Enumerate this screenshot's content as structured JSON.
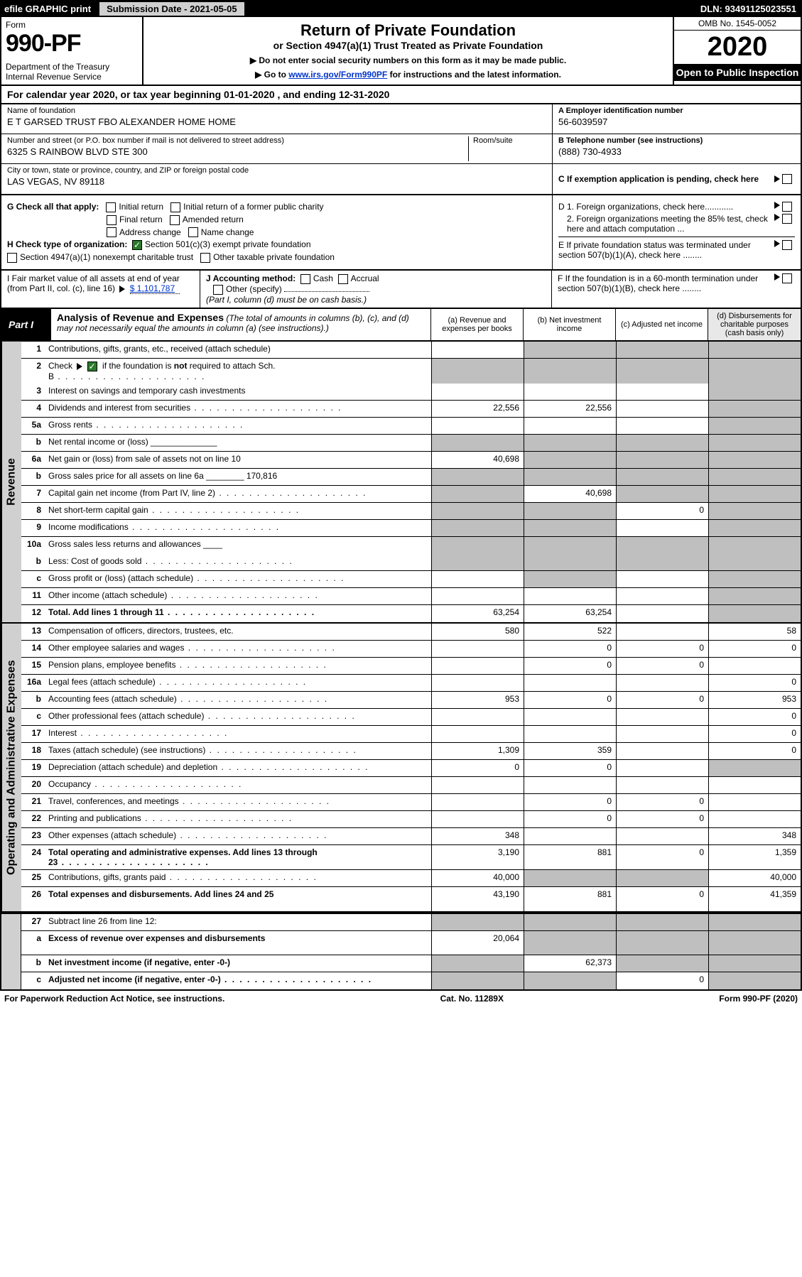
{
  "top": {
    "efile": "efile GRAPHIC print",
    "sub_date": "Submission Date - 2021-05-05",
    "dln": "DLN: 93491125023551"
  },
  "header": {
    "form_label": "Form",
    "form_num": "990-PF",
    "dept": "Department of the Treasury",
    "irs": "Internal Revenue Service",
    "title": "Return of Private Foundation",
    "subtitle": "or Section 4947(a)(1) Trust Treated as Private Foundation",
    "note1": "▶ Do not enter social security numbers on this form as it may be made public.",
    "note2_pre": "▶ Go to ",
    "note2_link": "www.irs.gov/Form990PF",
    "note2_post": " for instructions and the latest information.",
    "omb": "OMB No. 1545-0052",
    "year": "2020",
    "open": "Open to Public Inspection"
  },
  "cal": "For calendar year 2020, or tax year beginning 01-01-2020            , and ending 12-31-2020",
  "entity": {
    "name_lbl": "Name of foundation",
    "name": "E T GARSED TRUST FBO ALEXANDER HOME HOME",
    "addr_lbl": "Number and street (or P.O. box number if mail is not delivered to street address)",
    "room_lbl": "Room/suite",
    "addr": "6325 S RAINBOW BLVD STE 300",
    "city_lbl": "City or town, state or province, country, and ZIP or foreign postal code",
    "city": "LAS VEGAS, NV   89118",
    "ein_lbl": "A Employer identification number",
    "ein": "56-6039597",
    "tel_lbl": "B Telephone number (see instructions)",
    "tel": "(888) 730-4933",
    "pending": "C If exemption application is pending, check here"
  },
  "gh": {
    "g_lbl": "G Check all that apply:",
    "initial": "Initial return",
    "initial_former": "Initial return of a former public charity",
    "final": "Final return",
    "amended": "Amended return",
    "addr_chg": "Address change",
    "name_chg": "Name change",
    "h_lbl": "H Check type of organization:",
    "h501c3": "Section 501(c)(3) exempt private foundation",
    "h4947": "Section 4947(a)(1) nonexempt charitable trust",
    "hother": "Other taxable private foundation",
    "d1": "D 1. Foreign organizations, check here............",
    "d2": "2. Foreign organizations meeting the 85% test, check here and attach computation ...",
    "e": "E  If private foundation status was terminated under section 507(b)(1)(A), check here ........"
  },
  "ijf": {
    "i_lbl": "I Fair market value of all assets at end of year (from Part II, col. (c), line 16)",
    "i_val": "$  1,101,787",
    "j_lbl": "J Accounting method:",
    "cash": "Cash",
    "accrual": "Accrual",
    "other": "Other (specify)",
    "j_note": "(Part I, column (d) must be on cash basis.)",
    "f": "F  If the foundation is in a 60-month termination under section 507(b)(1)(B), check here ........"
  },
  "part1": {
    "badge": "Part I",
    "title_b": "Analysis of Revenue and Expenses",
    "title_rest": " (The total of amounts in columns (b), (c), and (d) may not necessarily equal the amounts in column (a) (see instructions).)",
    "col_a": "(a)   Revenue and expenses per books",
    "col_b": "(b)   Net investment income",
    "col_c": "(c)   Adjusted net income",
    "col_d": "(d)   Disbursements for charitable purposes (cash basis only)"
  },
  "side_rev": "Revenue",
  "side_exp": "Operating and Administrative Expenses",
  "rev_rows": [
    {
      "n": "1",
      "d": "Contributions, gifts, grants, etc., received (attach schedule)",
      "a": "",
      "b": "g",
      "c": "g",
      "dd": "g"
    },
    {
      "n": "2",
      "d": "Check ▶ ☑ if the foundation is not required to attach Sch. B",
      "dots": true,
      "a": "g",
      "b": "g",
      "c": "g",
      "dd": "g",
      "nob": true,
      "checkgreen": true
    },
    {
      "n": "3",
      "d": "Interest on savings and temporary cash investments",
      "a": "",
      "b": "",
      "c": "",
      "dd": "g"
    },
    {
      "n": "4",
      "d": "Dividends and interest from securities",
      "dots": true,
      "a": "22,556",
      "b": "22,556",
      "c": "",
      "dd": "g"
    },
    {
      "n": "5a",
      "d": "Gross rents",
      "dots": true,
      "a": "",
      "b": "",
      "c": "",
      "dd": "g"
    },
    {
      "n": "b",
      "d": "Net rental income or (loss)  ______________",
      "a": "g",
      "b": "g",
      "c": "g",
      "dd": "g"
    },
    {
      "n": "6a",
      "d": "Net gain or (loss) from sale of assets not on line 10",
      "a": "40,698",
      "b": "g",
      "c": "g",
      "dd": "g"
    },
    {
      "n": "b",
      "d": "Gross sales price for all assets on line 6a ________  170,816",
      "a": "g",
      "b": "g",
      "c": "g",
      "dd": "g"
    },
    {
      "n": "7",
      "d": "Capital gain net income (from Part IV, line 2)",
      "dots": true,
      "a": "g",
      "b": "40,698",
      "c": "g",
      "dd": "g"
    },
    {
      "n": "8",
      "d": "Net short-term capital gain",
      "dots": true,
      "a": "g",
      "b": "g",
      "c": "0",
      "dd": "g"
    },
    {
      "n": "9",
      "d": "Income modifications",
      "dots": true,
      "a": "g",
      "b": "g",
      "c": "",
      "dd": "g"
    },
    {
      "n": "10a",
      "d": "Gross sales less returns and allowances  ____",
      "a": "g",
      "b": "g",
      "c": "g",
      "dd": "g",
      "nob": true
    },
    {
      "n": "b",
      "d": "Less: Cost of goods sold",
      "dots": true,
      "a": "g",
      "b": "g",
      "c": "g",
      "dd": "g"
    },
    {
      "n": "c",
      "d": "Gross profit or (loss) (attach schedule)",
      "dots": true,
      "a": "",
      "b": "g",
      "c": "",
      "dd": "g"
    },
    {
      "n": "11",
      "d": "Other income (attach schedule)",
      "dots": true,
      "a": "",
      "b": "",
      "c": "",
      "dd": "g"
    },
    {
      "n": "12",
      "d": "Total. Add lines 1 through 11",
      "dots": true,
      "bold": true,
      "a": "63,254",
      "b": "63,254",
      "c": "",
      "dd": "g"
    }
  ],
  "exp_rows": [
    {
      "n": "13",
      "d": "Compensation of officers, directors, trustees, etc.",
      "a": "580",
      "b": "522",
      "c": "",
      "dd": "58"
    },
    {
      "n": "14",
      "d": "Other employee salaries and wages",
      "dots": true,
      "a": "",
      "b": "0",
      "c": "0",
      "dd": "0"
    },
    {
      "n": "15",
      "d": "Pension plans, employee benefits",
      "dots": true,
      "a": "",
      "b": "0",
      "c": "0",
      "dd": ""
    },
    {
      "n": "16a",
      "d": "Legal fees (attach schedule)",
      "dots": true,
      "a": "",
      "b": "",
      "c": "",
      "dd": "0"
    },
    {
      "n": "b",
      "d": "Accounting fees (attach schedule)",
      "dots": true,
      "a": "953",
      "b": "0",
      "c": "0",
      "dd": "953"
    },
    {
      "n": "c",
      "d": "Other professional fees (attach schedule)",
      "dots": true,
      "a": "",
      "b": "",
      "c": "",
      "dd": "0"
    },
    {
      "n": "17",
      "d": "Interest",
      "dots": true,
      "a": "",
      "b": "",
      "c": "",
      "dd": "0"
    },
    {
      "n": "18",
      "d": "Taxes (attach schedule) (see instructions)",
      "dots": true,
      "a": "1,309",
      "b": "359",
      "c": "",
      "dd": "0"
    },
    {
      "n": "19",
      "d": "Depreciation (attach schedule) and depletion",
      "dots": true,
      "a": "0",
      "b": "0",
      "c": "",
      "dd": "g"
    },
    {
      "n": "20",
      "d": "Occupancy",
      "dots": true,
      "a": "",
      "b": "",
      "c": "",
      "dd": ""
    },
    {
      "n": "21",
      "d": "Travel, conferences, and meetings",
      "dots": true,
      "a": "",
      "b": "0",
      "c": "0",
      "dd": ""
    },
    {
      "n": "22",
      "d": "Printing and publications",
      "dots": true,
      "a": "",
      "b": "0",
      "c": "0",
      "dd": ""
    },
    {
      "n": "23",
      "d": "Other expenses (attach schedule)",
      "dots": true,
      "a": "348",
      "b": "",
      "c": "",
      "dd": "348"
    },
    {
      "n": "24",
      "d": "Total operating and administrative expenses. Add lines 13 through 23",
      "dots": true,
      "bold": true,
      "a": "3,190",
      "b": "881",
      "c": "0",
      "dd": "1,359",
      "tall": true
    },
    {
      "n": "25",
      "d": "Contributions, gifts, grants paid",
      "dots": true,
      "a": "40,000",
      "b": "g",
      "c": "g",
      "dd": "40,000"
    },
    {
      "n": "26",
      "d": "Total expenses and disbursements. Add lines 24 and 25",
      "bold": true,
      "a": "43,190",
      "b": "881",
      "c": "0",
      "dd": "41,359",
      "tall": true
    }
  ],
  "net_rows": [
    {
      "n": "27",
      "d": "Subtract line 26 from line 12:",
      "a": "g",
      "b": "g",
      "c": "g",
      "dd": "g"
    },
    {
      "n": "a",
      "d": "Excess of revenue over expenses and disbursements",
      "bold": true,
      "a": "20,064",
      "b": "g",
      "c": "g",
      "dd": "g",
      "tall": true
    },
    {
      "n": "b",
      "d": "Net investment income (if negative, enter -0-)",
      "bold": true,
      "a": "g",
      "b": "62,373",
      "c": "g",
      "dd": "g"
    },
    {
      "n": "c",
      "d": "Adjusted net income (if negative, enter -0-)",
      "dots": true,
      "bold": true,
      "a": "g",
      "b": "g",
      "c": "0",
      "dd": "g"
    }
  ],
  "footer": {
    "left": "For Paperwork Reduction Act Notice, see instructions.",
    "mid": "Cat. No. 11289X",
    "right": "Form 990-PF (2020)"
  }
}
